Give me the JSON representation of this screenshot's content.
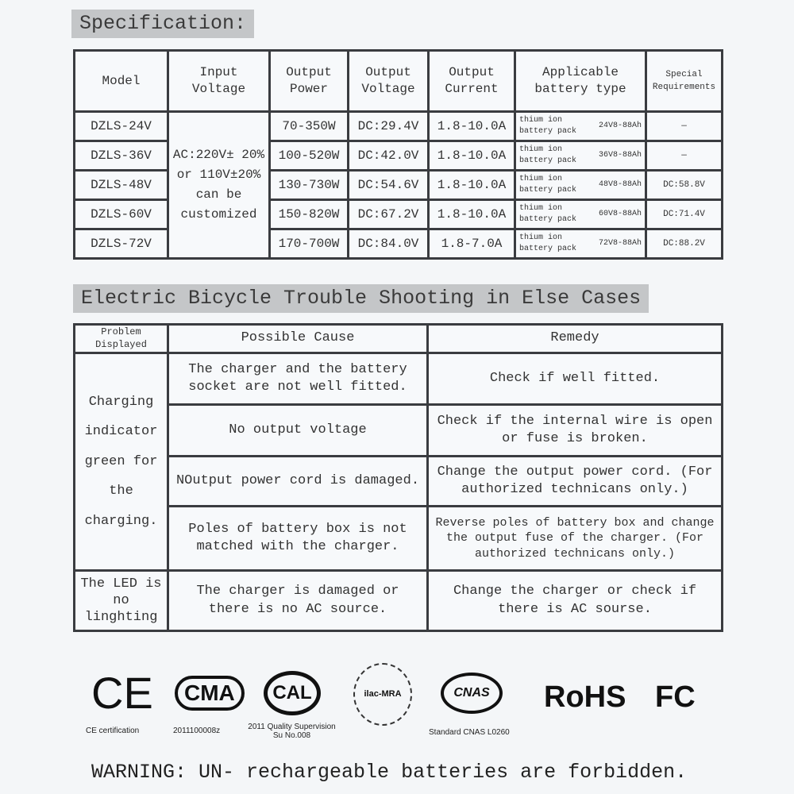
{
  "spec": {
    "title": "Specification:",
    "headers": [
      "Model",
      "Input Voltage",
      "Output Power",
      "Output Voltage",
      "Output Current",
      "Applicable battery type",
      "Special Requirements"
    ],
    "input_voltage": "AC:220V± 20% or 110V±20% can be customized",
    "rows": [
      {
        "model": "DZLS-24V",
        "power": "70-350W",
        "voltage": "DC:29.4V",
        "current": "1.8-10.0A",
        "battery": "thium ion battery pack",
        "capacity": "24V8-88Ah",
        "special": "—"
      },
      {
        "model": "DZLS-36V",
        "power": "100-520W",
        "voltage": "DC:42.0V",
        "current": "1.8-10.0A",
        "battery": "thium ion battery pack",
        "capacity": "36V8-88Ah",
        "special": "—"
      },
      {
        "model": "DZLS-48V",
        "power": "130-730W",
        "voltage": "DC:54.6V",
        "current": "1.8-10.0A",
        "battery": "thium ion battery pack",
        "capacity": "48V8-88Ah",
        "special": "DC:58.8V"
      },
      {
        "model": "DZLS-60V",
        "power": "150-820W",
        "voltage": "DC:67.2V",
        "current": "1.8-10.0A",
        "battery": "thium ion battery pack",
        "capacity": "60V8-88Ah",
        "special": "DC:71.4V"
      },
      {
        "model": "DZLS-72V",
        "power": "170-700W",
        "voltage": "DC:84.0V",
        "current": "1.8-7.0A",
        "battery": "thium ion battery pack",
        "capacity": "72V8-88Ah",
        "special": "DC:88.2V"
      }
    ]
  },
  "trouble": {
    "title": "Electric Bicycle Trouble Shooting in Else Cases",
    "headers": [
      "Problem Displayed",
      "Possible Cause",
      "Remedy"
    ],
    "problem1": "Charging indicator green for the charging.",
    "problem2": "The LED is no linghting",
    "rows": [
      {
        "cause": "The charger and the battery socket are not well fitted.",
        "remedy": "Check if well fitted."
      },
      {
        "cause": "No output voltage",
        "remedy": "Check if the internal wire is open or fuse is broken."
      },
      {
        "cause": "NOutput power cord is damaged.",
        "remedy": "Change the output power cord. (For authorized technicans only.)"
      },
      {
        "cause": "Poles of battery box is not matched with the charger.",
        "remedy": "Reverse poles of battery box and change the output fuse of the charger. (For authorized technicans only.)"
      },
      {
        "cause": "The charger is damaged or there is no AC source.",
        "remedy": "Change the charger or check if there is AC sourse."
      }
    ]
  },
  "logos": {
    "ce": "CE",
    "ce_caption": "CE certification",
    "cma": "CMA",
    "cma_caption": "2011100008z",
    "cal": "CAL",
    "cal_caption": "2011 Quality Supervision Su No.008",
    "ilac": "ilac-MRA",
    "cnas": "CNAS",
    "cnas_caption": "Standard CNAS L0260",
    "rohs": "RoHS",
    "fcc": "FC"
  },
  "warning": "WARNING: UN- rechargeable batteries are forbidden."
}
